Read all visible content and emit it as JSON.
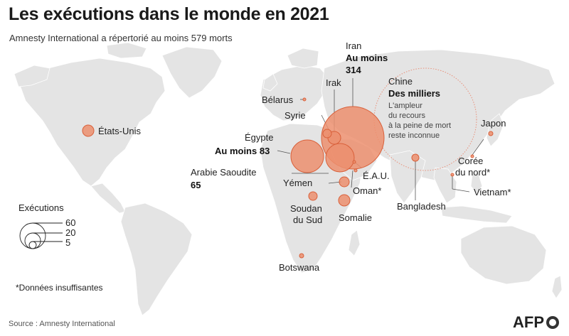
{
  "title": "Les exécutions dans le monde en 2021",
  "subtitle": "Amnesty International a répertorié au moins 579 morts",
  "countries": {
    "usa": "États-Unis",
    "belarus": "Bélarus",
    "irak": "Irak",
    "iran": "Iran",
    "iran_value_1": "Au moins",
    "iran_value_2": "314",
    "syrie": "Syrie",
    "egypte": "Égypte",
    "egypte_value": "Au moins 83",
    "arabie_1": "Arabie Saoudite",
    "arabie_value": "65",
    "yemen": "Yémen",
    "eau": "É.A.U.",
    "oman": "Oman*",
    "soudan_1": "Soudan",
    "soudan_2": "du Sud",
    "somalie": "Somalie",
    "botswana": "Botswana",
    "bangladesh": "Bangladesh",
    "chine": "Chine",
    "chine_value": "Des milliers",
    "chine_note_1": "L'ampleur",
    "chine_note_2": "du recours",
    "chine_note_3": "à la peine de mort",
    "chine_note_4": "reste inconnue",
    "japon": "Japon",
    "coree_1": "Corée",
    "coree_2": "du nord*",
    "vietnam": "Vietnam*"
  },
  "legend": {
    "title": "Exécutions",
    "v60": "60",
    "v20": "20",
    "v5": "5"
  },
  "note": "*Données insuffisantes",
  "source": "Source : Amnesty International",
  "logo": "AFP",
  "colors": {
    "bubble_fill": "#ec8f6e",
    "bubble_stroke": "#d9603a",
    "land": "#e4e4e4",
    "border": "#ffffff"
  }
}
